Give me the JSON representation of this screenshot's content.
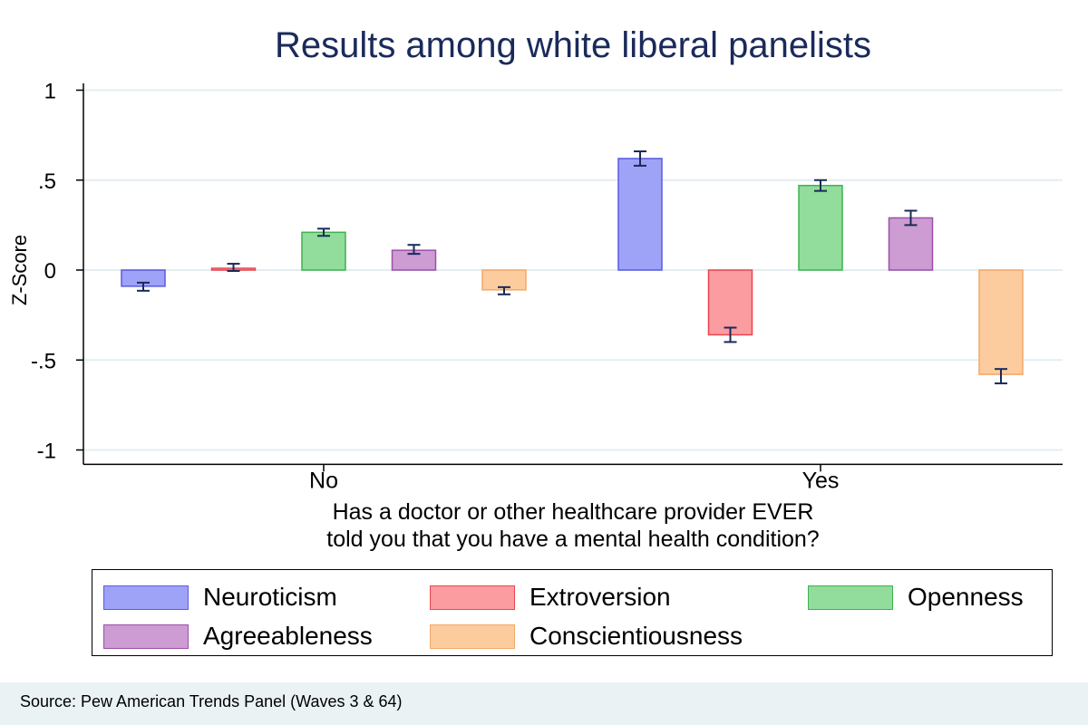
{
  "chart_data": {
    "type": "bar",
    "title": "Results among white liberal panelists",
    "ylabel": "Z-Score",
    "xlabel_lines": [
      "Has a doctor or other healthcare provider EVER",
      "told you that you have a mental health condition?"
    ],
    "categories": [
      "No",
      "Yes"
    ],
    "ylim": [
      -1.08,
      1.05
    ],
    "yticks": [
      1,
      0.5,
      0,
      -0.5,
      -1
    ],
    "ytick_labels": [
      "1",
      ".5",
      "0",
      "-.5",
      "-1"
    ],
    "grid": true,
    "legend_position": "bottom",
    "series": [
      {
        "name": "Neuroticism",
        "color": "#9ea3f8",
        "edge": "#5a5ae0",
        "values": [
          -0.09,
          0.62
        ],
        "ci_low": [
          -0.115,
          0.58
        ],
        "ci_high": [
          -0.07,
          0.66
        ]
      },
      {
        "name": "Extroversion",
        "color": "#fb9ca1",
        "edge": "#e84650",
        "values": [
          0.01,
          -0.36
        ],
        "ci_low": [
          -0.005,
          -0.4
        ],
        "ci_high": [
          0.035,
          -0.32
        ]
      },
      {
        "name": "Openness",
        "color": "#92dc9c",
        "edge": "#3fb24e",
        "values": [
          0.21,
          0.47
        ],
        "ci_low": [
          0.19,
          0.44
        ],
        "ci_high": [
          0.23,
          0.5
        ]
      },
      {
        "name": "Agreeableness",
        "color": "#cc9cd2",
        "edge": "#9e4fa9",
        "values": [
          0.11,
          0.29
        ],
        "ci_low": [
          0.09,
          0.25
        ],
        "ci_high": [
          0.14,
          0.33
        ]
      },
      {
        "name": "Conscientiousness",
        "color": "#fdcc9e",
        "edge": "#f1a868",
        "values": [
          -0.11,
          -0.58
        ],
        "ci_low": [
          -0.135,
          -0.63
        ],
        "ci_high": [
          -0.095,
          -0.55
        ]
      }
    ]
  },
  "legend_items": [
    "Neuroticism",
    "Extroversion",
    "Openness",
    "Agreeableness",
    "Conscientiousness"
  ],
  "source": "Source: Pew American Trends Panel (Waves 3 & 64)"
}
